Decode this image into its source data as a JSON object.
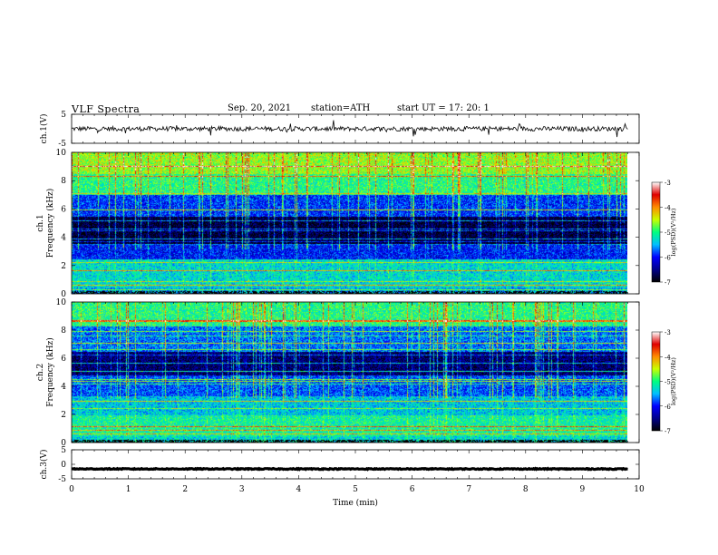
{
  "header": {
    "title": "VLF  Spectra",
    "date": "Sep. 20, 2021",
    "station": "station=ATH",
    "start": "start  UT  =    17: 20: 1"
  },
  "colors": {
    "trace": "#000000",
    "colormap": [
      "#000000",
      "#00008b",
      "#0000ff",
      "#00bfff",
      "#00ff7f",
      "#c8ff00",
      "#ff8c00",
      "#e00000",
      "#ffffff"
    ]
  },
  "chart_data": [
    {
      "type": "line",
      "id": "ch1-waveform",
      "ylabel": "ch.1(V)",
      "ylim": [
        -5,
        5
      ],
      "yticks": [
        5,
        -5
      ],
      "xlim": [
        0,
        10
      ],
      "description_values": {
        "baseline_V": 0,
        "noise_amplitude_V": 0.8,
        "x_end_min": 9.8
      }
    },
    {
      "type": "heatmap",
      "id": "ch1-spectrogram",
      "ylabel_top": "ch.1",
      "ylabel": "Frequency  (kHz)",
      "ylim": [
        0,
        10
      ],
      "yticks": [
        0,
        2,
        4,
        6,
        8,
        10
      ],
      "xlim": [
        0,
        10
      ],
      "x_end_min": 9.8,
      "bands": [
        {
          "from": 0,
          "to": 0.5,
          "level": -5.5
        },
        {
          "from": 0.5,
          "to": 2.5,
          "level": -5.3
        },
        {
          "from": 2.5,
          "to": 3.5,
          "level": -6.0
        },
        {
          "from": 3.5,
          "to": 5.5,
          "level": -6.8
        },
        {
          "from": 5.5,
          "to": 7.0,
          "level": -5.9
        },
        {
          "from": 7.0,
          "to": 8.5,
          "level": -5.0
        },
        {
          "from": 8.5,
          "to": 10,
          "level": -4.6
        }
      ],
      "colorbar": {
        "label": "log(PSD)(V²/Hz)",
        "ticks": [
          "-3",
          "-4",
          "-5",
          "-6",
          "-7"
        ],
        "range": [
          -7,
          -3
        ]
      }
    },
    {
      "type": "heatmap",
      "id": "ch2-spectrogram",
      "ylabel_top": "ch.2",
      "ylabel": "Frequency  (kHz)",
      "ylim": [
        0,
        10
      ],
      "yticks": [
        0,
        2,
        4,
        6,
        8,
        10
      ],
      "xlim": [
        0,
        10
      ],
      "x_end_min": 9.8,
      "bands": [
        {
          "from": 0,
          "to": 0.5,
          "level": -5.3
        },
        {
          "from": 0.5,
          "to": 2.0,
          "level": -5.1
        },
        {
          "from": 2.0,
          "to": 3.3,
          "level": -5.4
        },
        {
          "from": 3.3,
          "to": 4.8,
          "level": -5.8
        },
        {
          "from": 4.8,
          "to": 6.5,
          "level": -6.6
        },
        {
          "from": 6.5,
          "to": 8.3,
          "level": -5.7
        },
        {
          "from": 8.3,
          "to": 10,
          "level": -5.0
        }
      ],
      "colorbar": {
        "label": "log(PSD)(V²/Hz)",
        "ticks": [
          "-3",
          "-4",
          "-5",
          "-6",
          "-7"
        ],
        "range": [
          -7,
          -3
        ]
      }
    },
    {
      "type": "line",
      "id": "ch3-waveform",
      "ylabel": "ch.3(V)",
      "ylim": [
        -5,
        5
      ],
      "yticks": [
        5,
        0,
        -5
      ],
      "xlim": [
        0,
        10
      ],
      "description_values": {
        "baseline_V": -1.6,
        "noise_amplitude_V": 0.15,
        "x_end_min": 9.8
      }
    }
  ],
  "xaxis": {
    "label": "Time  (min)",
    "ticks": [
      "0",
      "1",
      "2",
      "3",
      "4",
      "5",
      "6",
      "7",
      "8",
      "9",
      "10"
    ]
  }
}
